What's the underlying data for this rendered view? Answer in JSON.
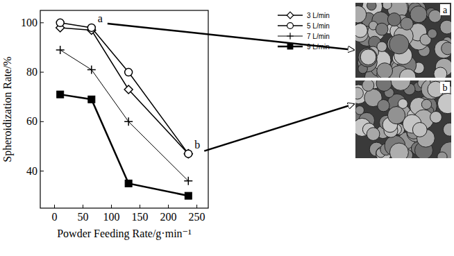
{
  "chart_data": {
    "type": "line",
    "x_label": "Powder Feeding Rate/g·min⁻¹",
    "y_label": "Spheroidization Rate/%",
    "x": [
      10,
      65,
      130,
      235
    ],
    "series": [
      {
        "name": "3 L/min",
        "color": "#000000",
        "marker": "diamond",
        "line_style": "solid",
        "values": [
          98,
          97,
          73,
          47
        ]
      },
      {
        "name": "5 L/min",
        "color": "#000000",
        "marker": "circle",
        "line_style": "solid",
        "values": [
          100,
          98,
          80,
          47
        ]
      },
      {
        "name": "7 L/min",
        "color": "#000000",
        "marker": "plus",
        "line_style": "solid",
        "values": [
          89,
          81,
          60,
          36
        ]
      },
      {
        "name": "9 L/min",
        "color": "#000000",
        "marker": "square",
        "line_style": "solid",
        "values": [
          71,
          69,
          35,
          30
        ]
      }
    ],
    "xlim": [
      -25,
      270
    ],
    "xticks": [
      0,
      50,
      100,
      150,
      200,
      250
    ],
    "ylim": [
      25,
      105
    ],
    "yticks": [
      40,
      60,
      80,
      100
    ],
    "grid": false,
    "legend": "right",
    "annotations": [
      {
        "text": "a",
        "x": 65,
        "y": 98
      },
      {
        "text": "b",
        "x": 235,
        "y": 47
      }
    ]
  },
  "images": [
    {
      "label": "a"
    },
    {
      "label": "b"
    }
  ]
}
